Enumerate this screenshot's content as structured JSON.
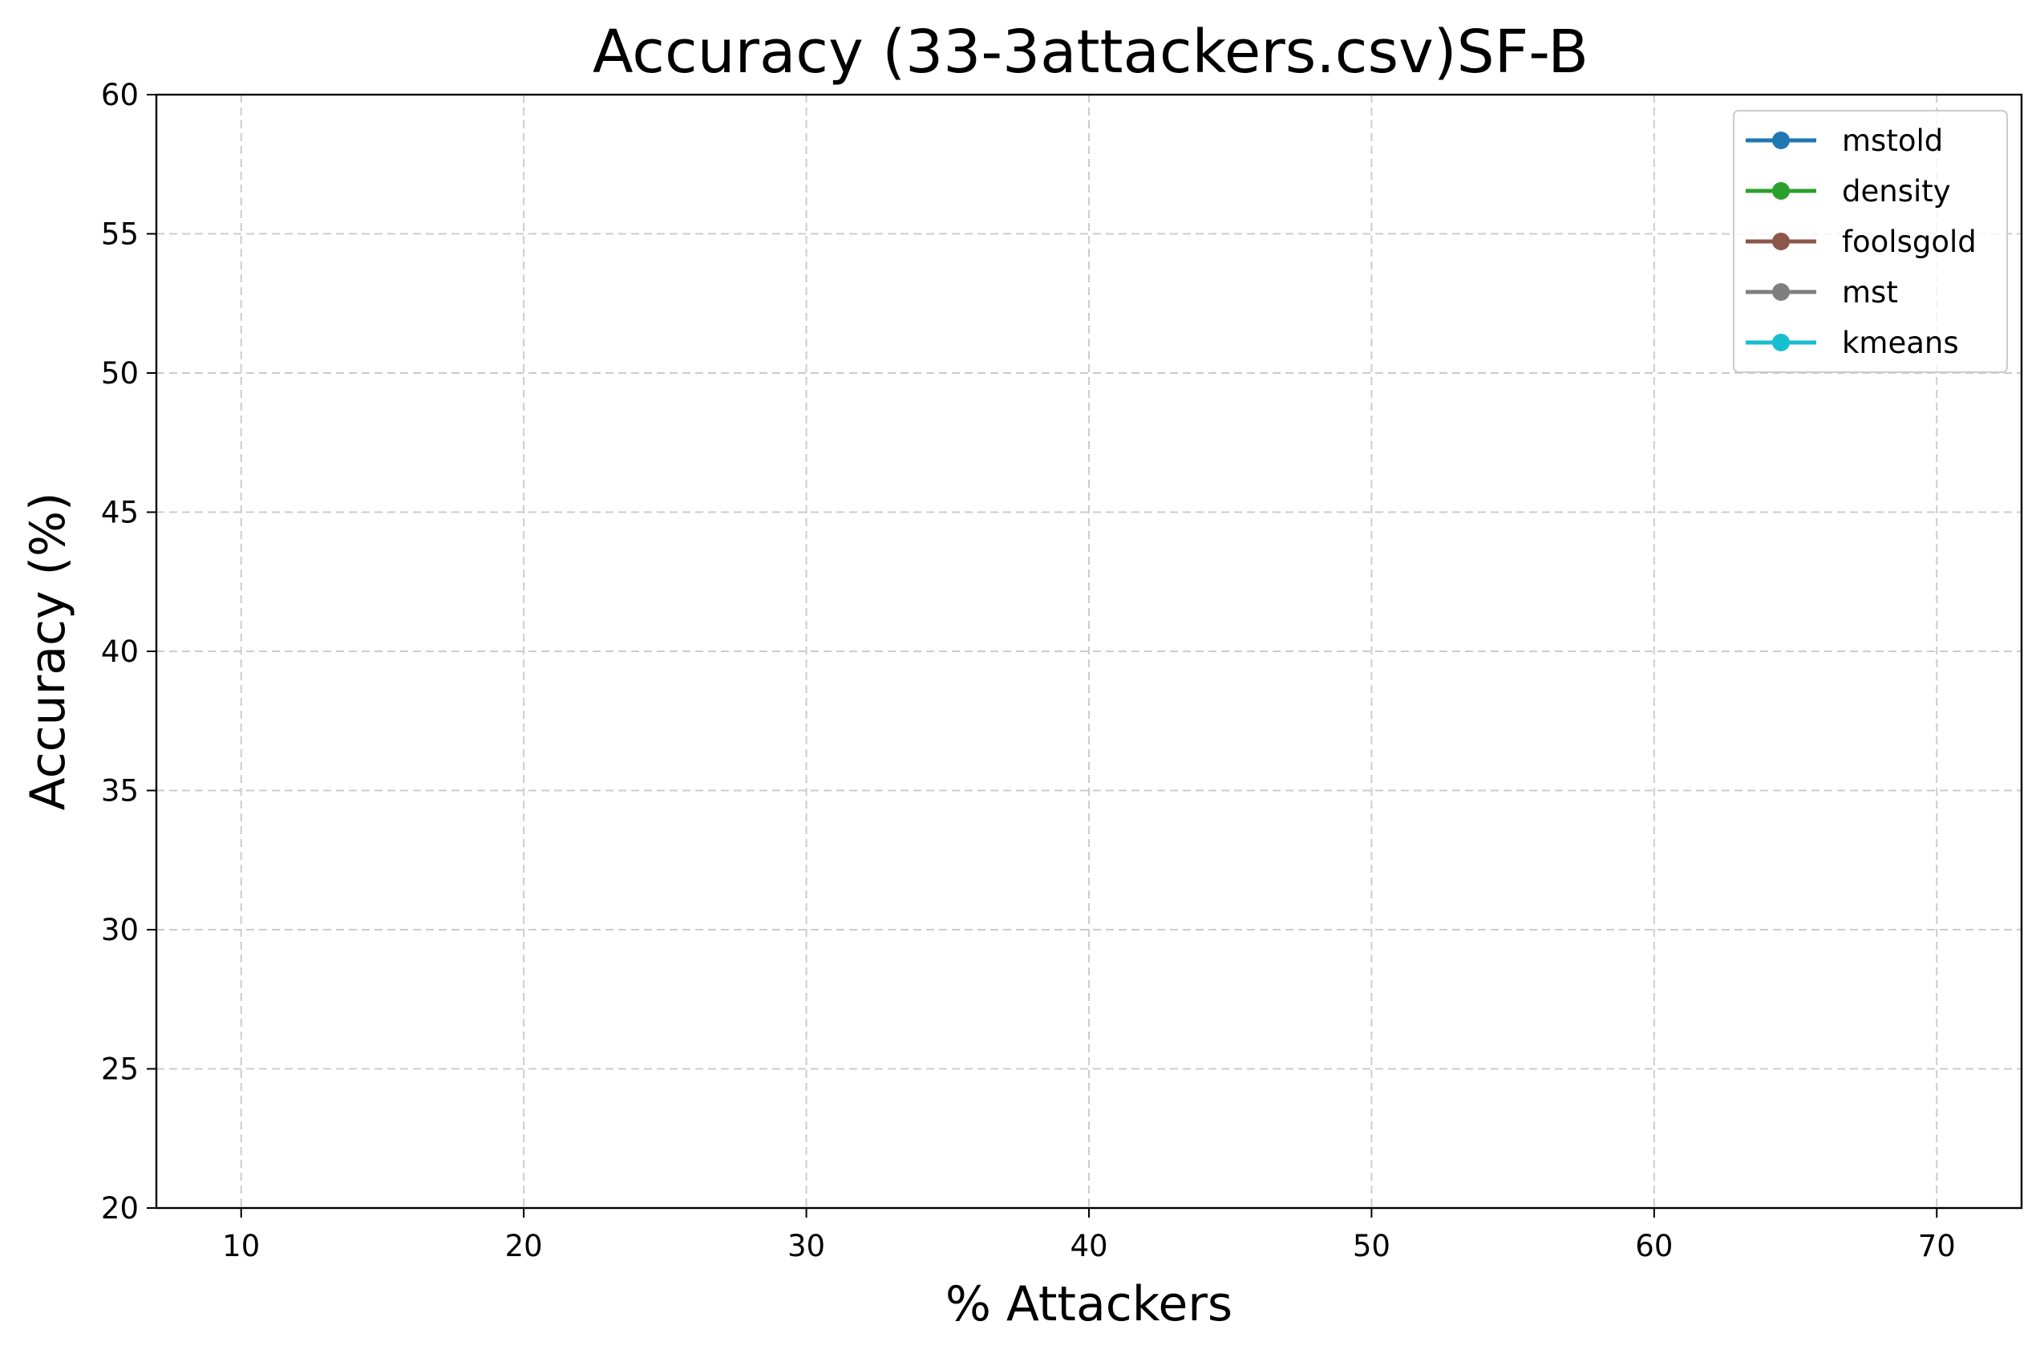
{
  "chart_data": {
    "type": "line",
    "title": "Accuracy (33-3attackers.csv)SF-B",
    "xlabel": "% Attackers",
    "ylabel": "Accuracy (%)",
    "xlim": [
      7,
      73
    ],
    "ylim": [
      20,
      60
    ],
    "xticks": [
      10,
      20,
      30,
      40,
      50,
      60,
      70
    ],
    "yticks": [
      20,
      25,
      30,
      35,
      40,
      45,
      50,
      55,
      60
    ],
    "grid": true,
    "legend_position": "top-right",
    "series": [
      {
        "name": "mstold",
        "color": "#1f77b4",
        "marker": "circle",
        "x": [],
        "y": []
      },
      {
        "name": "density",
        "color": "#2ca02c",
        "marker": "circle",
        "x": [],
        "y": []
      },
      {
        "name": "foolsgold",
        "color": "#8c564b",
        "marker": "circle",
        "x": [],
        "y": []
      },
      {
        "name": "mst",
        "color": "#7f7f7f",
        "marker": "circle",
        "x": [],
        "y": []
      },
      {
        "name": "kmeans",
        "color": "#17becf",
        "marker": "circle",
        "x": [],
        "y": []
      }
    ]
  }
}
